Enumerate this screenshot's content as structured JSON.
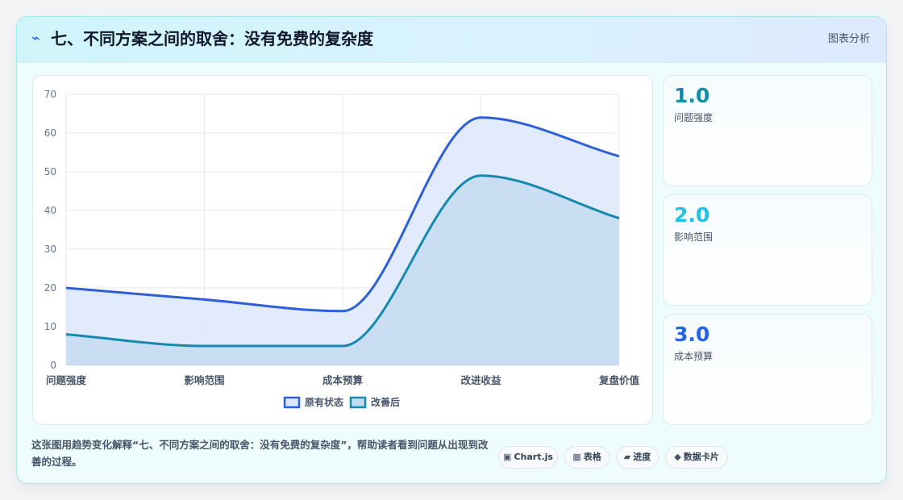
{
  "header": {
    "title": "七、不同方案之间的取舍：没有免费的复杂度",
    "tag": "图表分析"
  },
  "chart_data": {
    "type": "area",
    "categories": [
      "问题强度",
      "影响范围",
      "成本预算",
      "改进收益",
      "复盘价值"
    ],
    "series": [
      {
        "name": "原有状态",
        "values": [
          20,
          17,
          14,
          64,
          54
        ],
        "color": "#2f5fd6",
        "fill": "#dde7fb"
      },
      {
        "name": "改善后",
        "values": [
          8,
          5,
          5,
          49,
          38
        ],
        "color": "#1689ad",
        "fill": "#c4dcf0"
      }
    ],
    "ylim": [
      0,
      70
    ],
    "yticks": [
      0,
      10,
      20,
      30,
      40,
      50,
      60,
      70
    ],
    "grid": true,
    "legend": "bottom"
  },
  "stats": [
    {
      "value": "1.0",
      "label": "问题强度",
      "color": "#0e8fa8"
    },
    {
      "value": "2.0",
      "label": "影响范围",
      "color": "#22c3e0"
    },
    {
      "value": "3.0",
      "label": "成本预算",
      "color": "#2563eb"
    }
  ],
  "footer": {
    "description": "这张图用趋势变化解释“七、不同方案之间的取舍：没有免费的复杂度”，帮助读者看到问题从出现到改善的过程。",
    "pills": [
      {
        "icon": "▣",
        "label": "Chart.js"
      },
      {
        "icon": "▦",
        "label": "表格"
      },
      {
        "icon": "▰",
        "label": "进度"
      },
      {
        "icon": "◆",
        "label": "数据卡片"
      }
    ]
  }
}
